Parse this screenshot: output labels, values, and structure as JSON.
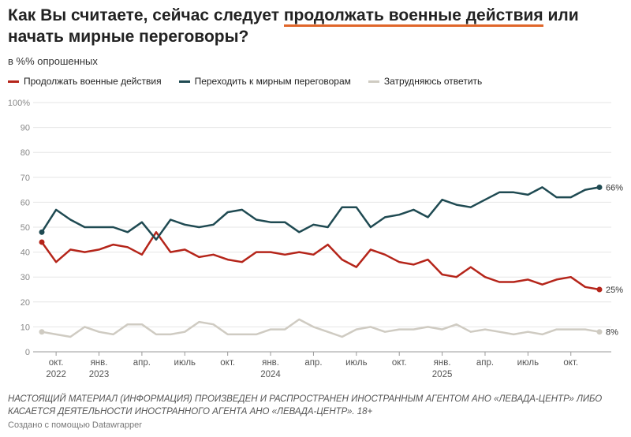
{
  "chart_data": {
    "type": "line",
    "title_parts": [
      "Как Вы считаете, сейчас следует ",
      "продолжать военные действия",
      " или начать мирные переговоры?"
    ],
    "subtitle": "в %% опрошенных",
    "x": [
      "2022-09",
      "2022-10",
      "2022-11",
      "2022-12",
      "2023-01",
      "2023-02",
      "2023-03",
      "2023-04",
      "2023-05",
      "2023-06",
      "2023-07",
      "2023-08",
      "2023-09",
      "2023-10",
      "2023-11",
      "2023-12",
      "2024-01",
      "2024-02",
      "2024-03",
      "2024-04",
      "2024-05",
      "2024-06",
      "2024-07",
      "2024-08",
      "2024-09",
      "2024-10",
      "2024-11",
      "2024-12",
      "2025-01",
      "2025-02",
      "2025-03",
      "2025-04",
      "2025-05",
      "2025-06",
      "2025-07",
      "2025-08",
      "2025-09",
      "2025-10",
      "2025-11",
      "2025-12"
    ],
    "xticks": [
      {
        "value": "2022-10",
        "label": "окт.",
        "year": "2022"
      },
      {
        "value": "2023-01",
        "label": "янв.",
        "year": "2023"
      },
      {
        "value": "2023-04",
        "label": "апр."
      },
      {
        "value": "2023-07",
        "label": "июль"
      },
      {
        "value": "2023-10",
        "label": "окт."
      },
      {
        "value": "2024-01",
        "label": "янв.",
        "year": "2024"
      },
      {
        "value": "2024-04",
        "label": "апр."
      },
      {
        "value": "2024-07",
        "label": "июль"
      },
      {
        "value": "2024-10",
        "label": "окт."
      },
      {
        "value": "2025-01",
        "label": "янв.",
        "year": "2025"
      },
      {
        "value": "2025-04",
        "label": "апр."
      },
      {
        "value": "2025-07",
        "label": "июль"
      },
      {
        "value": "2025-10",
        "label": "окт."
      }
    ],
    "ylim": [
      0,
      100
    ],
    "yticks": [
      0,
      10,
      20,
      30,
      40,
      50,
      60,
      70,
      80,
      90,
      {
        "value": 100,
        "label": "100%"
      }
    ],
    "grid": true,
    "series": [
      {
        "name": "Продолжать военные действия",
        "color": "#b5251a",
        "end_label": "25%",
        "values": [
          44,
          36,
          41,
          40,
          41,
          43,
          42,
          39,
          48,
          40,
          41,
          38,
          39,
          37,
          36,
          40,
          40,
          39,
          40,
          39,
          43,
          37,
          34,
          41,
          39,
          36,
          35,
          37,
          31,
          30,
          34,
          30,
          28,
          28,
          29,
          27,
          29,
          30,
          26,
          25
        ]
      },
      {
        "name": "Переходить к мирным переговорам",
        "color": "#1f4a52",
        "end_label": "66%",
        "values": [
          48,
          57,
          53,
          50,
          50,
          50,
          48,
          52,
          45,
          53,
          51,
          50,
          51,
          56,
          57,
          53,
          52,
          52,
          48,
          51,
          50,
          58,
          58,
          50,
          54,
          55,
          57,
          54,
          61,
          59,
          58,
          61,
          64,
          64,
          63,
          66,
          62,
          62,
          65,
          66
        ]
      },
      {
        "name": "Затрудняюсь ответить",
        "color": "#cfcbc2",
        "end_label": "8%",
        "values": [
          8,
          7,
          6,
          10,
          8,
          7,
          11,
          11,
          7,
          7,
          8,
          12,
          11,
          7,
          7,
          7,
          9,
          9,
          13,
          10,
          8,
          6,
          9,
          10,
          8,
          9,
          9,
          10,
          9,
          11,
          8,
          9,
          8,
          7,
          8,
          7,
          9,
          9,
          9,
          8
        ]
      }
    ],
    "footnote": "НАСТОЯЩИЙ МАТЕРИАЛ (ИНФОРМАЦИЯ) ПРОИЗВЕДЕН И РАСПРОСТРАНЕН ИНОСТРАННЫМ АГЕНТОМ АНО «ЛЕВАДА-ЦЕНТР» ЛИБО КАСАЕТСЯ ДЕЯТЕЛЬНОСТИ ИНОСТРАННОГО АГЕНТА АНО «ЛЕВАДА-ЦЕНТР». 18+",
    "credit": "Создано с помощью Datawrapper"
  }
}
